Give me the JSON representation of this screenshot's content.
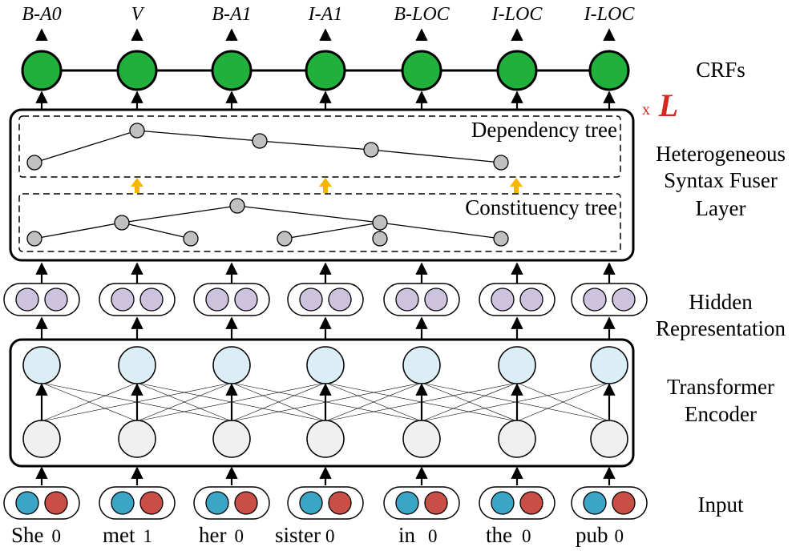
{
  "tags": [
    "B-A0",
    "V",
    "B-A1",
    "I-A1",
    "B-LOC",
    "I-LOC",
    "I-LOC"
  ],
  "words": [
    {
      "text": "She",
      "index": "0"
    },
    {
      "text": "met",
      "index": "1"
    },
    {
      "text": "her",
      "index": "0"
    },
    {
      "text": "sister",
      "index": "0"
    },
    {
      "text": "in",
      "index": "0"
    },
    {
      "text": "the",
      "index": "0"
    },
    {
      "text": "pub",
      "index": "0"
    }
  ],
  "labels": {
    "crfs": "CRFs",
    "repeat_x": "x",
    "repeat_L": "L",
    "fuser_line1": "Heterogeneous",
    "fuser_line2": "Syntax Fuser",
    "fuser_line3": "Layer",
    "hidden_line1": "Hidden",
    "hidden_line2": "Representation",
    "encoder_line1": "Transformer",
    "encoder_line2": "Encoder",
    "input": "Input",
    "dependency_tree": "Dependency tree",
    "constituency_tree": "Constituency tree"
  },
  "colors": {
    "crf_node": "#22b03c",
    "hidden_node": "#cdc3de",
    "encoder_top_node": "#dceef5",
    "encoder_bottom_node": "#f0f0f0",
    "input_left": "#3aa5c5",
    "input_right": "#c94f46",
    "tree_node": "#c0c0c0",
    "fusion_arrow": "#f7b500",
    "repeat_mark": "#d42a20"
  }
}
